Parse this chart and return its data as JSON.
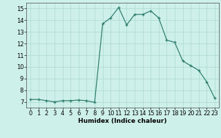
{
  "x": [
    0,
    1,
    2,
    3,
    4,
    5,
    6,
    7,
    8,
    9,
    10,
    11,
    12,
    13,
    14,
    15,
    16,
    17,
    18,
    19,
    20,
    21,
    22,
    23
  ],
  "y": [
    7.2,
    7.2,
    7.1,
    7.0,
    7.1,
    7.1,
    7.15,
    7.1,
    6.95,
    13.7,
    14.2,
    15.1,
    13.6,
    14.5,
    14.5,
    14.8,
    14.2,
    12.3,
    12.1,
    10.5,
    10.1,
    9.7,
    8.7,
    7.3
  ],
  "xlabel": "Humidex (Indice chaleur)",
  "xlim": [
    -0.5,
    23.5
  ],
  "ylim": [
    6.5,
    15.5
  ],
  "yticks": [
    7,
    8,
    9,
    10,
    11,
    12,
    13,
    14,
    15
  ],
  "xticks": [
    0,
    1,
    2,
    3,
    4,
    5,
    6,
    7,
    8,
    9,
    10,
    11,
    12,
    13,
    14,
    15,
    16,
    17,
    18,
    19,
    20,
    21,
    22,
    23
  ],
  "line_color": "#2e7d6e",
  "bg_color": "#cef0ea",
  "grid_color": "#aad8d0",
  "xlabel_fontsize": 6.5,
  "tick_fontsize": 6
}
